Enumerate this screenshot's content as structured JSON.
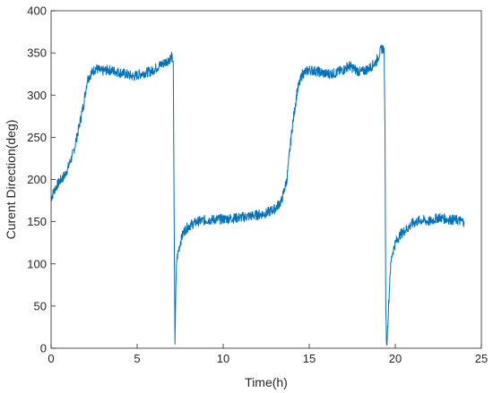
{
  "chart_data": {
    "type": "line",
    "title": "",
    "xlabel": "Time(h)",
    "ylabel": "Curent Direction(deg)",
    "xlim": [
      0,
      25
    ],
    "ylim": [
      0,
      400
    ],
    "xticks": [
      0,
      5,
      10,
      15,
      20,
      25
    ],
    "yticks": [
      0,
      50,
      100,
      150,
      200,
      250,
      300,
      350,
      400
    ],
    "xtick_labels": [
      "0",
      "5",
      "10",
      "15",
      "20",
      "25"
    ],
    "ytick_labels": [
      "0",
      "50",
      "100",
      "150",
      "200",
      "250",
      "300",
      "350",
      "400"
    ],
    "grid": false,
    "legend": "none",
    "series": [
      {
        "color": "#0072BD",
        "x": [
          0,
          0.25,
          0.5,
          0.8,
          1.0,
          1.3,
          1.6,
          1.9,
          2.1,
          2.3,
          2.6,
          2.9,
          3.3,
          3.8,
          4.3,
          4.8,
          5.3,
          5.8,
          6.3,
          6.7,
          7.0,
          7.1,
          7.15,
          7.2,
          7.25,
          7.3,
          7.4,
          7.5,
          7.7,
          8.0,
          8.5,
          9.0,
          10.0,
          11.0,
          12.0,
          12.5,
          13.0,
          13.4,
          13.7,
          14.0,
          14.3,
          14.6,
          15.0,
          15.5,
          16.0,
          16.5,
          17.0,
          17.3,
          17.7,
          18.0,
          18.5,
          18.9,
          19.2,
          19.35,
          19.4,
          19.45,
          19.5,
          19.6,
          19.7,
          19.8,
          20.0,
          20.3,
          20.7,
          21.0,
          21.5,
          22.0,
          22.5,
          23.0,
          23.5,
          24.0
        ],
        "y": [
          178,
          190,
          198,
          205,
          215,
          232,
          260,
          290,
          318,
          325,
          332,
          328,
          330,
          328,
          325,
          322,
          326,
          328,
          335,
          340,
          345,
          340,
          150,
          5,
          70,
          105,
          115,
          125,
          138,
          145,
          150,
          152,
          153,
          155,
          158,
          160,
          165,
          175,
          200,
          260,
          305,
          325,
          330,
          328,
          325,
          326,
          330,
          335,
          330,
          327,
          332,
          340,
          355,
          355,
          260,
          40,
          0,
          45,
          90,
          110,
          125,
          135,
          142,
          148,
          152,
          150,
          155,
          153,
          152,
          150
        ]
      }
    ]
  }
}
